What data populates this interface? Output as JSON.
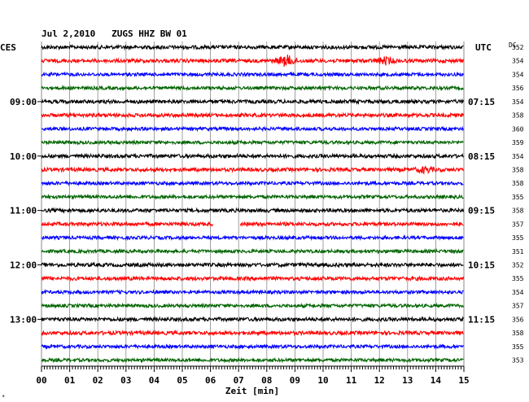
{
  "chart_data": {
    "type": "line",
    "title": "Jul 2,2010   ZUGS HHZ BW 01",
    "left_timezone": "CES",
    "right_timezone": "UTC",
    "dc_label": "DC",
    "xlabel": "Zeit [min]",
    "x_range": [
      0,
      15
    ],
    "x_ticks": [
      "00",
      "01",
      "02",
      "03",
      "04",
      "05",
      "06",
      "07",
      "08",
      "09",
      "10",
      "11",
      "12",
      "13",
      "14",
      "15"
    ],
    "colors": {
      "trace_cycle": [
        "#000000",
        "#ff0000",
        "#0000ff",
        "#006400"
      ],
      "grid": "#888888",
      "text": "#000000"
    },
    "left_labels": [
      {
        "row": 4,
        "text": "09:00"
      },
      {
        "row": 8,
        "text": "10:00"
      },
      {
        "row": 12,
        "text": "11:00"
      },
      {
        "row": 16,
        "text": "12:00"
      },
      {
        "row": 20,
        "text": "13:00"
      }
    ],
    "right_labels": [
      {
        "row": 4,
        "text": "07:15"
      },
      {
        "row": 8,
        "text": "08:15"
      },
      {
        "row": 12,
        "text": "09:15"
      },
      {
        "row": 16,
        "text": "10:15"
      },
      {
        "row": 20,
        "text": "11:15"
      }
    ],
    "dc_values": [
      "352",
      "354",
      "354",
      "356",
      "354",
      "358",
      "360",
      "359",
      "354",
      "358",
      "358",
      "355",
      "358",
      "357",
      "355",
      "351",
      "352",
      "355",
      "354",
      "357",
      "356",
      "358",
      "355",
      "353"
    ],
    "traces": [
      {
        "amp": 1.0
      },
      {
        "amp": 1.0,
        "events": [
          {
            "t": 8.7,
            "strength": 2.5
          },
          {
            "t": 12.2,
            "strength": 1.5
          }
        ]
      },
      {
        "amp": 0.9
      },
      {
        "amp": 0.9
      },
      {
        "amp": 1.0
      },
      {
        "amp": 1.0
      },
      {
        "amp": 0.9
      },
      {
        "amp": 0.9
      },
      {
        "amp": 1.0
      },
      {
        "amp": 1.0,
        "events": [
          {
            "t": 13.6,
            "strength": 1.2
          }
        ]
      },
      {
        "amp": 0.9
      },
      {
        "amp": 0.9
      },
      {
        "amp": 1.0
      },
      {
        "amp": 1.0,
        "gap": [
          6.1,
          7.05
        ]
      },
      {
        "amp": 0.9
      },
      {
        "amp": 0.9
      },
      {
        "amp": 1.0
      },
      {
        "amp": 1.0
      },
      {
        "amp": 0.9
      },
      {
        "amp": 0.9
      },
      {
        "amp": 1.0
      },
      {
        "amp": 1.0
      },
      {
        "amp": 0.9
      },
      {
        "amp": 0.9
      }
    ]
  }
}
